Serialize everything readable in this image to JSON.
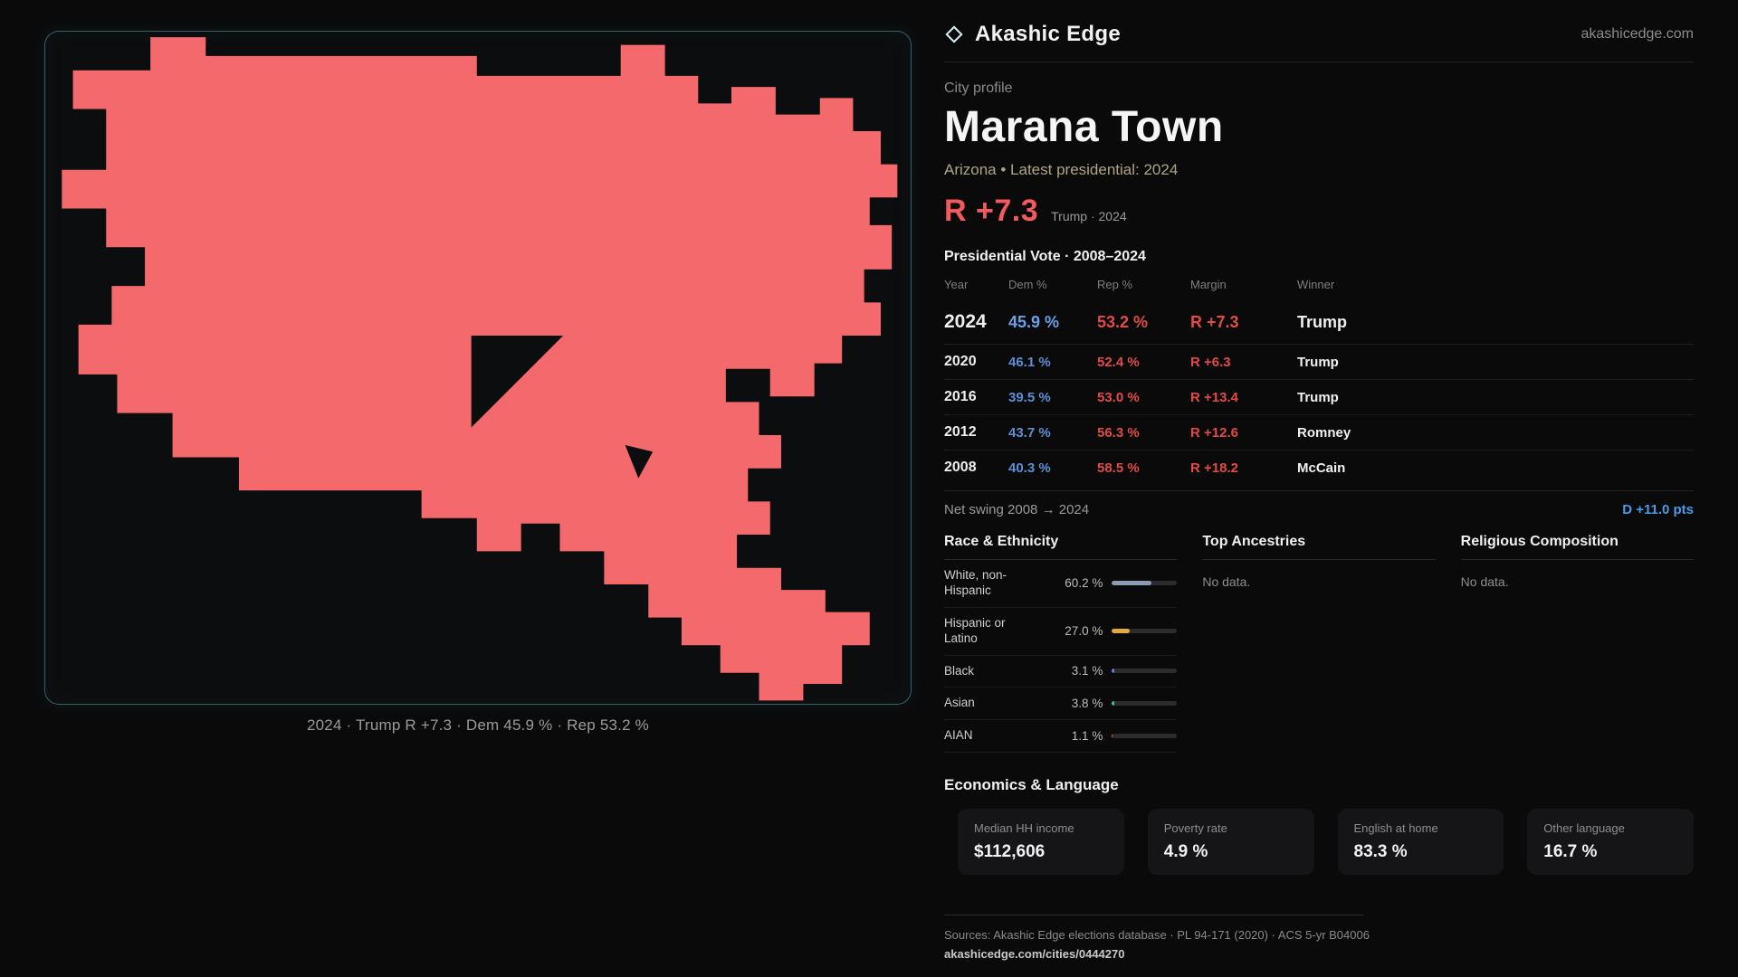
{
  "brand": {
    "name": "Akashic Edge",
    "domain": "akashicedge.com",
    "diamond_color": "#d8f0f4"
  },
  "map": {
    "caption": "2024 · Trump R +7.3 · Dem 45.9 % · Rep 53.2 %",
    "shape_color": "#f4696b",
    "background_color": "#0c0d0e",
    "border_color": "#3e7f8c"
  },
  "profile": {
    "kicker": "City profile",
    "title": "Marana Town",
    "subtitle": "Arizona • Latest presidential: 2024",
    "headline_margin": "R +7.3",
    "headline_note": "Trump · 2024"
  },
  "vote_table": {
    "title": "Presidential Vote · 2008–2024",
    "columns": {
      "year": "Year",
      "dem": "Dem %",
      "rep": "Rep %",
      "margin": "Margin",
      "winner": "Winner"
    },
    "rows": [
      {
        "year": "2024",
        "dem": "45.9 %",
        "rep": "53.2 %",
        "margin": "R +7.3",
        "winner": "Trump"
      },
      {
        "year": "2020",
        "dem": "46.1 %",
        "rep": "52.4 %",
        "margin": "R +6.3",
        "winner": "Trump"
      },
      {
        "year": "2016",
        "dem": "39.5 %",
        "rep": "53.0 %",
        "margin": "R +13.4",
        "winner": "Trump"
      },
      {
        "year": "2012",
        "dem": "43.7 %",
        "rep": "56.3 %",
        "margin": "R +12.6",
        "winner": "Romney"
      },
      {
        "year": "2008",
        "dem": "40.3 %",
        "rep": "58.5 %",
        "margin": "R +18.2",
        "winner": "McCain"
      }
    ],
    "dem_color": "#5d8fd4",
    "rep_color": "#e04c45"
  },
  "net_swing": {
    "label": "Net swing 2008 → 2024",
    "value": "D +11.0 pts",
    "value_color": "#4b9ae8"
  },
  "demographics": {
    "race": {
      "title": "Race & Ethnicity",
      "rows": [
        {
          "label": "White, non-Hispanic",
          "value": "60.2 %",
          "pct": 60.2,
          "color": "#8e9bb5"
        },
        {
          "label": "Hispanic or Latino",
          "value": "27.0 %",
          "pct": 27.0,
          "color": "#e3a93c"
        },
        {
          "label": "Black",
          "value": "3.1 %",
          "pct": 3.1,
          "color": "#5d7fe0"
        },
        {
          "label": "Asian",
          "value": "3.8 %",
          "pct": 3.8,
          "color": "#3fbf8f"
        },
        {
          "label": "AIAN",
          "value": "1.1 %",
          "pct": 1.1,
          "color": "#e0763c"
        }
      ]
    },
    "ancestries": {
      "title": "Top Ancestries",
      "empty": "No data."
    },
    "religion": {
      "title": "Religious Composition",
      "empty": "No data."
    }
  },
  "economics": {
    "title": "Economics & Language",
    "stats": [
      {
        "label": "Median HH income",
        "value": "$112,606"
      },
      {
        "label": "Poverty rate",
        "value": "4.9 %"
      },
      {
        "label": "English at home",
        "value": "83.3 %"
      },
      {
        "label": "Other language",
        "value": "16.7 %"
      }
    ]
  },
  "footer": {
    "sources": "Sources: Akashic Edge elections database · PL 94-171 (2020) · ACS 5-yr B04006",
    "permalink": "akashicedge.com/cities/0444270"
  }
}
